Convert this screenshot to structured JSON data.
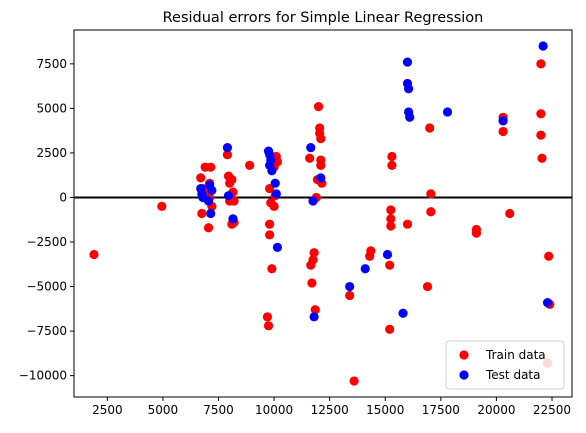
{
  "chart_data": {
    "type": "scatter",
    "title": "Residual errors for Simple Linear Regression",
    "xlabel": "",
    "ylabel": "",
    "xlim": [
      1000,
      23400
    ],
    "ylim": [
      -11200,
      9400
    ],
    "xticks": [
      2500,
      5000,
      7500,
      10000,
      12500,
      15000,
      17500,
      20000,
      22500
    ],
    "xtick_labels": [
      "2500",
      "5000",
      "7500",
      "10000",
      "12500",
      "15000",
      "17500",
      "20000",
      "22500"
    ],
    "yticks": [
      -10000,
      -7500,
      -5000,
      -2500,
      0,
      2500,
      5000,
      7500
    ],
    "ytick_labels": [
      "−10000",
      "−7500",
      "−5000",
      "−2500",
      "0",
      "2500",
      "5000",
      "7500"
    ],
    "hline": {
      "y": 0,
      "color": "#000000"
    },
    "grid": false,
    "legend": {
      "placement": "lower-right"
    },
    "series": [
      {
        "name": "Train data",
        "color": "#ff0000",
        "x": [
          1900,
          4950,
          6700,
          6750,
          6800,
          6900,
          7000,
          7050,
          7100,
          7100,
          7150,
          7200,
          7900,
          7950,
          8000,
          8000,
          8050,
          8100,
          8100,
          8150,
          8200,
          8200,
          8900,
          9700,
          9750,
          9800,
          9800,
          9800,
          9850,
          9900,
          9950,
          10000,
          10000,
          10050,
          10100,
          10150,
          11600,
          11650,
          11700,
          11750,
          11800,
          11850,
          11900,
          11950,
          12000,
          12050,
          12050,
          12100,
          12100,
          12100,
          12150,
          13400,
          13600,
          14300,
          14350,
          15200,
          15200,
          15250,
          15250,
          15250,
          15300,
          15300,
          16000,
          16900,
          17000,
          17050,
          17050,
          19100,
          19100,
          20300,
          20300,
          20600,
          22000,
          22000,
          22000,
          22050,
          22300,
          22350,
          22400
        ],
        "y": [
          -3200,
          -500,
          1100,
          -900,
          500,
          1700,
          300,
          -1700,
          800,
          0,
          1700,
          -500,
          2400,
          1200,
          800,
          -200,
          0,
          -1500,
          1000,
          300,
          -1400,
          -200,
          1800,
          -6700,
          -7200,
          -1500,
          -2100,
          500,
          -300,
          -4000,
          2100,
          1700,
          -500,
          100,
          2300,
          2000,
          2200,
          -3800,
          -4800,
          -3500,
          -3100,
          -6300,
          0,
          1000,
          5100,
          3900,
          3600,
          3300,
          2100,
          1800,
          800,
          -5500,
          -10300,
          -3300,
          -3000,
          -7400,
          -3800,
          -1600,
          -1200,
          -700,
          1800,
          2300,
          -1500,
          -5000,
          3900,
          200,
          -800,
          -1800,
          -2000,
          4500,
          3700,
          -900,
          7500,
          4700,
          3500,
          2200,
          -9300,
          -3300,
          -6000
        ]
      },
      {
        "name": "Test data",
        "color": "#0000ff",
        "x": [
          6700,
          6750,
          6800,
          7050,
          7100,
          7150,
          7200,
          7900,
          7950,
          8150,
          9750,
          9800,
          9800,
          9850,
          9900,
          10050,
          10100,
          10150,
          11650,
          11750,
          11800,
          12100,
          13400,
          14100,
          15100,
          15800,
          16000,
          16000,
          16050,
          16050,
          16100,
          17800,
          20300,
          22100,
          22300
        ],
        "y": [
          500,
          200,
          0,
          -200,
          700,
          -900,
          400,
          2800,
          100,
          -1200,
          2600,
          2400,
          1800,
          2100,
          1500,
          800,
          200,
          -2800,
          2800,
          -200,
          -6700,
          1100,
          -5000,
          -4000,
          -3200,
          -6500,
          7600,
          6400,
          6100,
          4800,
          4500,
          4800,
          4300,
          8500,
          -5900
        ]
      }
    ]
  }
}
